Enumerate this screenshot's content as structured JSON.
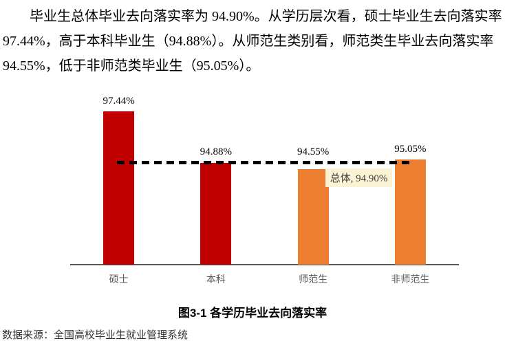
{
  "paragraph": {
    "lines": [
      "毕业生总体毕业去向落实率为 94.90%。从学历层次看，硕士毕业生去向落实率",
      "97.44%，高于本科毕业生（94.88%）。从师范生类别看，师范类生毕业去向落实率",
      "94.55%，低于非师范类毕业生（95.05%）。"
    ]
  },
  "chart_data": {
    "type": "bar",
    "title": "图3-1 各学历毕业去向落实率",
    "categories": [
      "硕士",
      "本科",
      "师范生",
      "非师范生"
    ],
    "values": [
      97.44,
      94.88,
      94.55,
      95.05
    ],
    "value_labels": [
      "97.44%",
      "94.88%",
      "94.55%",
      "95.05%"
    ],
    "bar_colors": [
      "#c00000",
      "#c00000",
      "#ed7d31",
      "#ed7d31"
    ],
    "reference_line": {
      "name": "总体",
      "value": 94.9,
      "label": "总体, 94.90%",
      "color": "#000000",
      "style": "dashed"
    },
    "xlabel": "",
    "ylabel": "",
    "ylim": [
      89.8,
      98.5
    ],
    "grid": false,
    "legend": "none"
  },
  "caption": "图3-1 各学历毕业去向落实率",
  "source": "数据来源：全国高校毕业生就业管理系统",
  "colors": {
    "bar_red": "#c00000",
    "bar_orange": "#ed7d31",
    "axis": "#595959",
    "dashed_line": "#000000",
    "ref_label_bg": "#fcf2d4",
    "ref_label_text": "#3f3f3f"
  }
}
